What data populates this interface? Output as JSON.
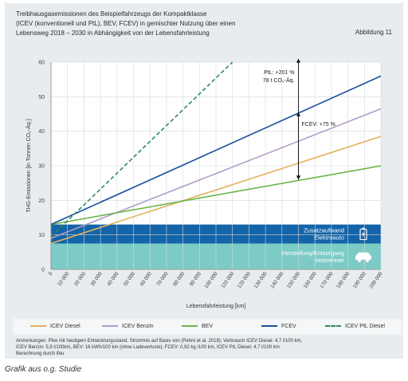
{
  "figure_label": "Abbildung 11",
  "caption": "Grafik aus o.g. Studie",
  "chart_data": {
    "type": "line",
    "title_lines": [
      "Treibhausgasemissionen des Beispielfahrzeugs der Kompaktklasse",
      "(ICEV (konventionell und PtL), BEV, FCEV) in gemischter Nutzung über einen",
      "Lebensweg 2018 – 2030 in Abhängigkeit von der Lebensfahrleistung"
    ],
    "xlabel": "Lebensfahrleistung [km]",
    "ylabel": "THG-Emissionen [in Tonnen CO₂-Äq.]",
    "xlim": [
      0,
      200000
    ],
    "ylim": [
      0,
      60
    ],
    "x_ticks": [
      "0",
      "10 000",
      "20 000",
      "30 000",
      "40 000",
      "50 000",
      "60 000",
      "70 000",
      "80 000",
      "90 000",
      "100 000",
      "110 000",
      "120 000",
      "130 000",
      "140 000",
      "150 000",
      "160 000",
      "170 000",
      "180 000",
      "190 000",
      "200 000"
    ],
    "y_ticks": [
      0,
      10,
      20,
      30,
      40,
      50,
      60
    ],
    "grid": true,
    "series": [
      {
        "name": "ICEV Diesel",
        "color": "#e3b15e",
        "dash": "solid",
        "x": [
          0,
          200000
        ],
        "y": [
          7.5,
          38.5
        ]
      },
      {
        "name": "ICEV Benzin",
        "color": "#b19bc6",
        "dash": "solid",
        "x": [
          0,
          200000
        ],
        "y": [
          9,
          46.5
        ]
      },
      {
        "name": "BEV",
        "color": "#6db649",
        "dash": "solid",
        "x": [
          0,
          200000
        ],
        "y": [
          13,
          30
        ]
      },
      {
        "name": "FCEV",
        "color": "#1b4f9c",
        "dash": "solid",
        "x": [
          0,
          200000
        ],
        "y": [
          13,
          56
        ]
      },
      {
        "name": "ICEV PtL Diesel",
        "color": "#2e8b57",
        "dash": "dashed",
        "x": [
          0,
          110000
        ],
        "y": [
          9.5,
          60
        ]
      }
    ],
    "bands": [
      {
        "label_lines": [
          "Zusatzaufwand",
          "Elektroauto"
        ],
        "y0": 7.5,
        "y1": 13,
        "color": "#1364a8",
        "text_color": "#ffffff",
        "icon": "battery-icon"
      },
      {
        "label_lines": [
          "Herstellung/Entsorgung",
          "Verbrenner"
        ],
        "y0": 0,
        "y1": 7.5,
        "color": "#7ccbc6",
        "text_color": "#ffffff",
        "icon": "car-icon"
      }
    ],
    "annotations": [
      {
        "label_lines": [
          "PtL: +201 %",
          "78 t CO₂-Äq."
        ],
        "x": 150000,
        "y0": 26,
        "y1": 61
      },
      {
        "label_lines": [
          "FCEV: +75 %"
        ],
        "x": 150000,
        "y0": 26,
        "y1": 45.5
      }
    ],
    "legend_position": "bottom"
  },
  "notes_lines": [
    "Anmerkungen: Pkw mit heutigem Entwicklungsstand, Strommix auf Basis von (Pehnt et al. 2018); Verbrauch ICEV Diesel: 4,7 l/100 km,",
    "ICEV Benzin: 5,9 l/100km, BEV: 16 kWh/100 km (ohne Ladeverluste), FCEV: 0,92 kg /100 km, ICEV PtL Diesel: 4,7 l/100 km",
    "Berechnung durch ifeu"
  ]
}
